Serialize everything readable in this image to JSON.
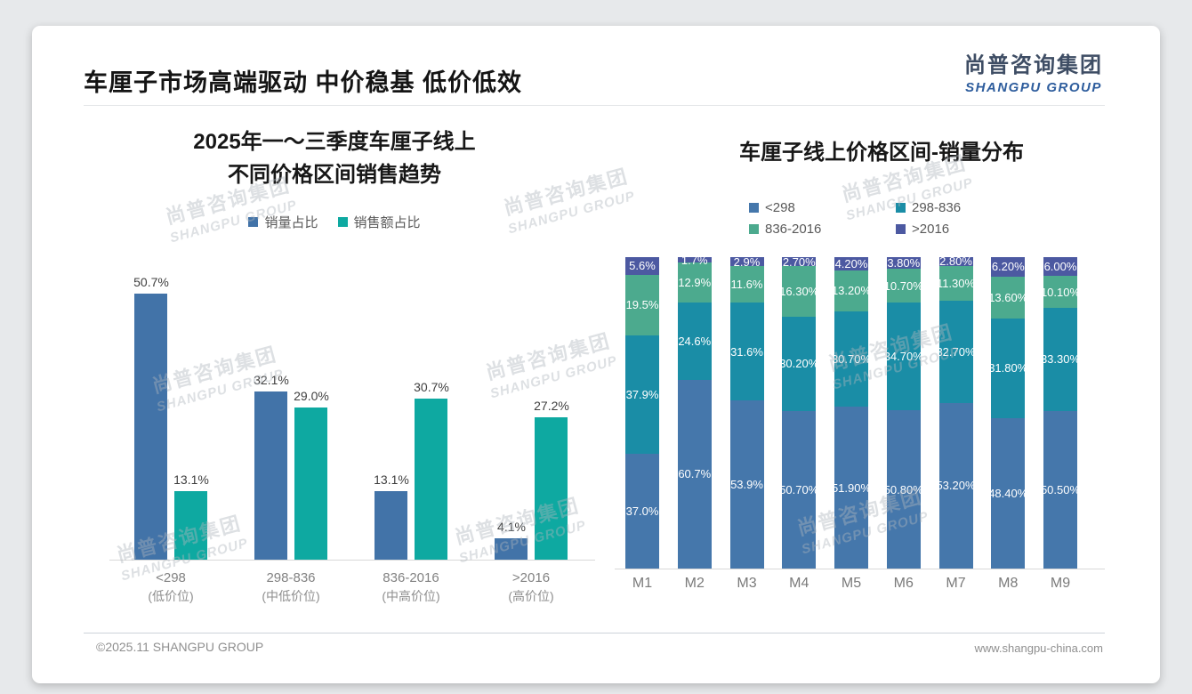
{
  "title": "车厘子市场高端驱动 中价稳基 低价低效",
  "logo": {
    "cn": "尚普咨询集团",
    "en": "SHANGPU GROUP"
  },
  "watermark": {
    "cn": "尚普咨询集团",
    "en": "SHANGPU GROUP"
  },
  "footer": {
    "copyright": "©2025.11 SHANGPU GROUP",
    "website": "www.shangpu-china.com"
  },
  "colors": {
    "volume_blue": "#4273a8",
    "revenue_teal": "#0ea9a1",
    "stack_blue": "#4577ab",
    "stack_teal": "#1a8da6",
    "stack_green": "#4caa8e",
    "stack_purple": "#4c59a1"
  },
  "chart_data": [
    {
      "type": "bar",
      "title_lines": [
        "2025年一～三季度车厘子线上",
        "不同价格区间销售趋势"
      ],
      "legend_position": "top",
      "grid": false,
      "ylim": [
        0,
        55
      ],
      "categories": [
        "<298",
        "298-836",
        "836-2016",
        ">2016"
      ],
      "category_notes": [
        "(低价位)",
        "(中低价位)",
        "(中高价位)",
        "(高价位)"
      ],
      "series": [
        {
          "name": "销量占比",
          "color": "#4273a8",
          "values": [
            50.7,
            32.1,
            13.1,
            4.1
          ],
          "labels": [
            "50.7%",
            "32.1%",
            "13.1%",
            "4.1%"
          ]
        },
        {
          "name": "销售额占比",
          "color": "#0ea9a1",
          "values": [
            13.1,
            29.0,
            30.7,
            27.2
          ],
          "labels": [
            "13.1%",
            "29.0%",
            "30.7%",
            "27.2%"
          ]
        }
      ]
    },
    {
      "type": "stacked-bar",
      "title": "车厘子线上价格区间-销量分布",
      "legend_position": "top",
      "grid": false,
      "ylim": [
        0,
        100
      ],
      "categories": [
        "M1",
        "M2",
        "M3",
        "M4",
        "M5",
        "M6",
        "M7",
        "M8",
        "M9"
      ],
      "series": [
        {
          "name": "<298",
          "color": "#4577ab",
          "values": [
            37.0,
            60.7,
            53.9,
            50.7,
            51.9,
            50.8,
            53.2,
            48.4,
            50.5
          ],
          "labels": [
            "37.0%",
            "60.7%",
            "53.9%",
            "50.70%",
            "51.90%",
            "50.80%",
            "53.20%",
            "48.40%",
            "50.50%"
          ]
        },
        {
          "name": "298-836",
          "color": "#1a8da6",
          "values": [
            37.9,
            24.6,
            31.6,
            30.2,
            30.7,
            34.7,
            32.7,
            31.8,
            33.3
          ],
          "labels": [
            "37.9%",
            "24.6%",
            "31.6%",
            "30.20%",
            "30.70%",
            "34.70%",
            "32.70%",
            "31.80%",
            "33.30%"
          ]
        },
        {
          "name": "836-2016",
          "color": "#4caa8e",
          "values": [
            19.5,
            12.9,
            11.6,
            16.3,
            13.2,
            10.7,
            11.3,
            13.6,
            10.1
          ],
          "labels": [
            "19.5%",
            "12.9%",
            "11.6%",
            "16.30%",
            "13.20%",
            "10.70%",
            "11.30%",
            "13.60%",
            "10.10%"
          ]
        },
        {
          "name": ">2016",
          "color": "#4c59a1",
          "values": [
            5.6,
            1.7,
            2.9,
            2.7,
            4.2,
            3.8,
            2.8,
            6.2,
            6.0
          ],
          "labels": [
            "5.6%",
            "1.7%",
            "2.9%",
            "2.70%",
            "4.20%",
            "3.80%",
            "2.80%",
            "6.20%",
            "6.00%"
          ]
        }
      ]
    }
  ]
}
